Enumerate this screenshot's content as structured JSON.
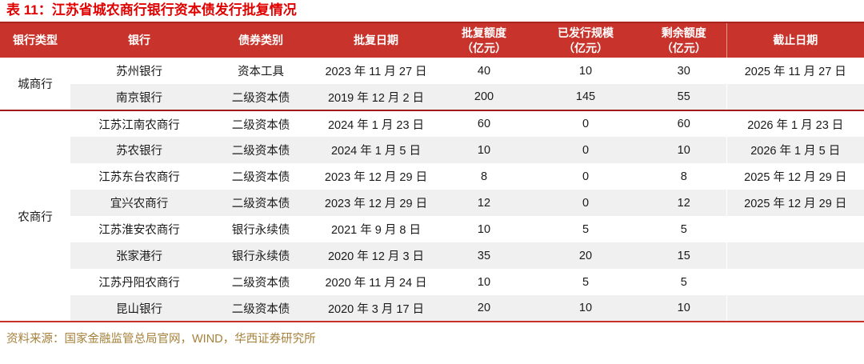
{
  "title": "表 11：江苏省城农商行银行资本债发行批复情况",
  "source": "资料来源：国家金融监管总局官网，WIND，华西证券研究所",
  "colors": {
    "title_red": "#E00000",
    "header_red": "#C8332B",
    "header_top_line": "#A8251F",
    "group_divider_red": "#A01B16",
    "bottom_rule_red": "#C9302A",
    "stripe_gray": "#F0F0F0",
    "source_gold": "#A5813B"
  },
  "table": {
    "headers": [
      {
        "label": "银行类型",
        "unit": ""
      },
      {
        "label": "银行",
        "unit": ""
      },
      {
        "label": "债券类别",
        "unit": ""
      },
      {
        "label": "批复日期",
        "unit": ""
      },
      {
        "label": "批复额度",
        "unit": "（亿元）"
      },
      {
        "label": "已发行规模",
        "unit": "（亿元）"
      },
      {
        "label": "剩余额度",
        "unit": "（亿元）"
      },
      {
        "label": "截止日期",
        "unit": ""
      }
    ],
    "groups": [
      {
        "type": "城商行",
        "rows": [
          {
            "bank": "苏州银行",
            "bond_type": "资本工具",
            "approval_date": "2023 年 11 月 27 日",
            "approved_quota": 40,
            "issued_scale": 10,
            "remaining_quota": 30,
            "end_date": "2025 年 11 月 27 日"
          },
          {
            "bank": "南京银行",
            "bond_type": "二级资本债",
            "approval_date": "2019 年 12 月 2 日",
            "approved_quota": 200,
            "issued_scale": 145,
            "remaining_quota": 55,
            "end_date": ""
          }
        ]
      },
      {
        "type": "农商行",
        "rows": [
          {
            "bank": "江苏江南农商行",
            "bond_type": "二级资本债",
            "approval_date": "2024 年 1 月 23 日",
            "approved_quota": 60,
            "issued_scale": 0,
            "remaining_quota": 60,
            "end_date": "2026 年 1 月 23 日"
          },
          {
            "bank": "苏农银行",
            "bond_type": "二级资本债",
            "approval_date": "2024 年 1 月 5 日",
            "approved_quota": 10,
            "issued_scale": 0,
            "remaining_quota": 10,
            "end_date": "2026 年 1 月 5 日"
          },
          {
            "bank": "江苏东台农商行",
            "bond_type": "二级资本债",
            "approval_date": "2023 年 12 月 29 日",
            "approved_quota": 8,
            "issued_scale": 0,
            "remaining_quota": 8,
            "end_date": "2025 年 12 月 29 日"
          },
          {
            "bank": "宜兴农商行",
            "bond_type": "二级资本债",
            "approval_date": "2023 年 12 月 29 日",
            "approved_quota": 12,
            "issued_scale": 0,
            "remaining_quota": 12,
            "end_date": "2025 年 12 月 29 日"
          },
          {
            "bank": "江苏淮安农商行",
            "bond_type": "银行永续债",
            "approval_date": "2021 年 9 月 8 日",
            "approved_quota": 10,
            "issued_scale": 5,
            "remaining_quota": 5,
            "end_date": ""
          },
          {
            "bank": "张家港行",
            "bond_type": "银行永续债",
            "approval_date": "2020 年 12 月 3 日",
            "approved_quota": 35,
            "issued_scale": 20,
            "remaining_quota": 15,
            "end_date": ""
          },
          {
            "bank": "江苏丹阳农商行",
            "bond_type": "二级资本债",
            "approval_date": "2020 年 11 月 24 日",
            "approved_quota": 10,
            "issued_scale": 5,
            "remaining_quota": 5,
            "end_date": ""
          },
          {
            "bank": "昆山银行",
            "bond_type": "二级资本债",
            "approval_date": "2020 年 3 月 17 日",
            "approved_quota": 20,
            "issued_scale": 10,
            "remaining_quota": 10,
            "end_date": ""
          }
        ]
      }
    ]
  }
}
